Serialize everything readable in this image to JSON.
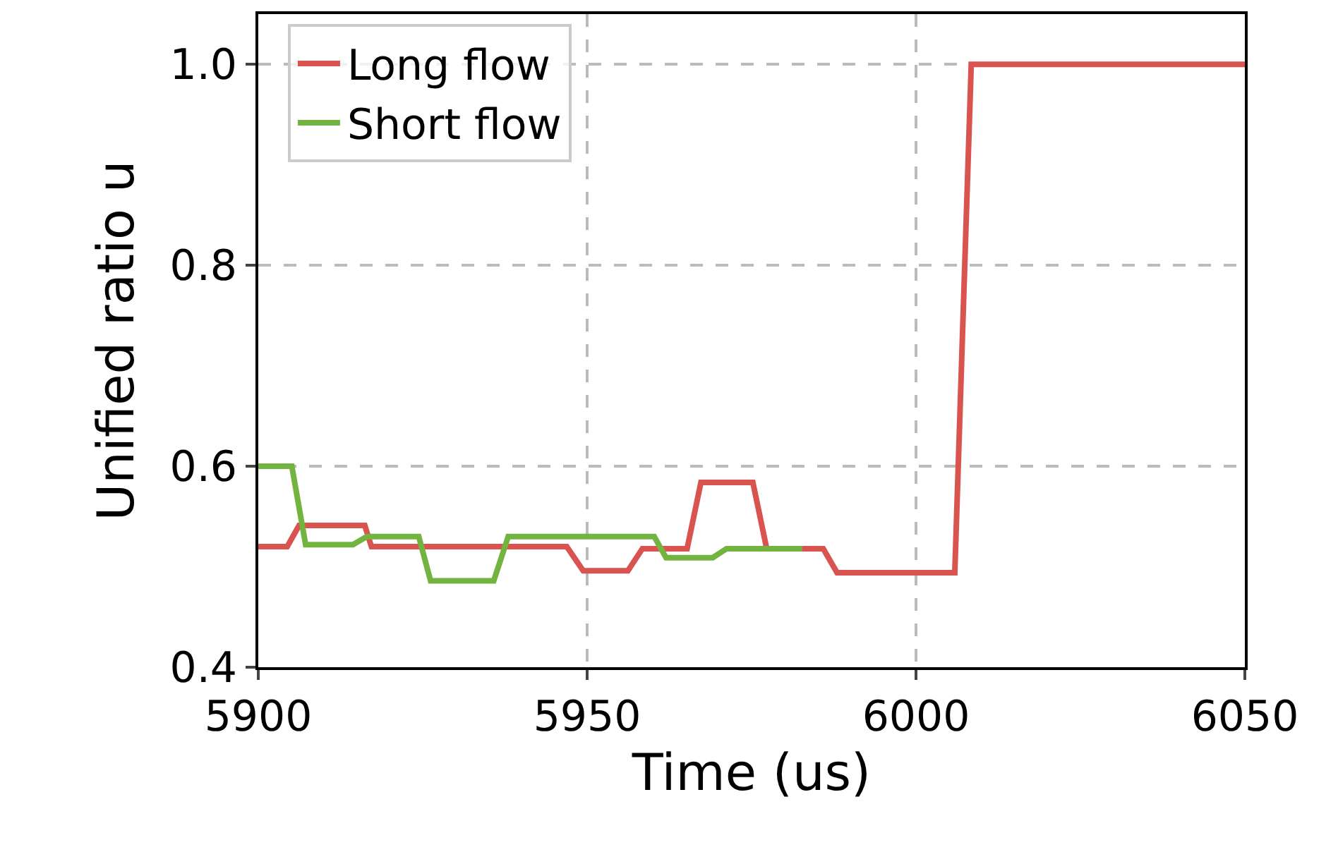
{
  "chart_data": {
    "type": "line",
    "xlabel": "Time (us)",
    "ylabel": "Unified ratio u",
    "xlim": [
      5900,
      6050
    ],
    "xticks": [
      5900,
      5950,
      6000,
      6050
    ],
    "ylim": [
      0.4,
      1.05
    ],
    "yticks": [
      0.4,
      0.6,
      0.8,
      {
        "value": 1,
        "label": "1.0"
      }
    ],
    "grid": true,
    "legend": "top left",
    "line_style": "solid",
    "marker": "none",
    "series": [
      {
        "name": "Long flow",
        "color": "#d9534f",
        "x": [
          5900,
          5904.4,
          5906.2,
          5916.2,
          5917.2,
          5946.9,
          5949.4,
          5956.2,
          5958.4,
          5965.2,
          5967.3,
          5975.2,
          5977.3,
          5985.9,
          5988.0,
          6005.9,
          6008.4,
          6050
        ],
        "values": [
          0.52,
          0.52,
          0.541,
          0.541,
          0.52,
          0.52,
          0.496,
          0.496,
          0.518,
          0.518,
          0.584,
          0.584,
          0.518,
          0.518,
          0.494,
          0.494,
          1.0,
          1.0
        ]
      },
      {
        "name": "Short flow",
        "color": "#73b33f",
        "x": [
          5900,
          5905.1,
          5907.2,
          5914.4,
          5916.5,
          5924.4,
          5926.2,
          5935.8,
          5938.0,
          5960.2,
          5962.0,
          5969.1,
          5971.2,
          5982.7
        ],
        "values": [
          0.6,
          0.6,
          0.522,
          0.522,
          0.53,
          0.53,
          0.486,
          0.486,
          0.53,
          0.53,
          0.509,
          0.509,
          0.518,
          0.518
        ]
      }
    ]
  }
}
